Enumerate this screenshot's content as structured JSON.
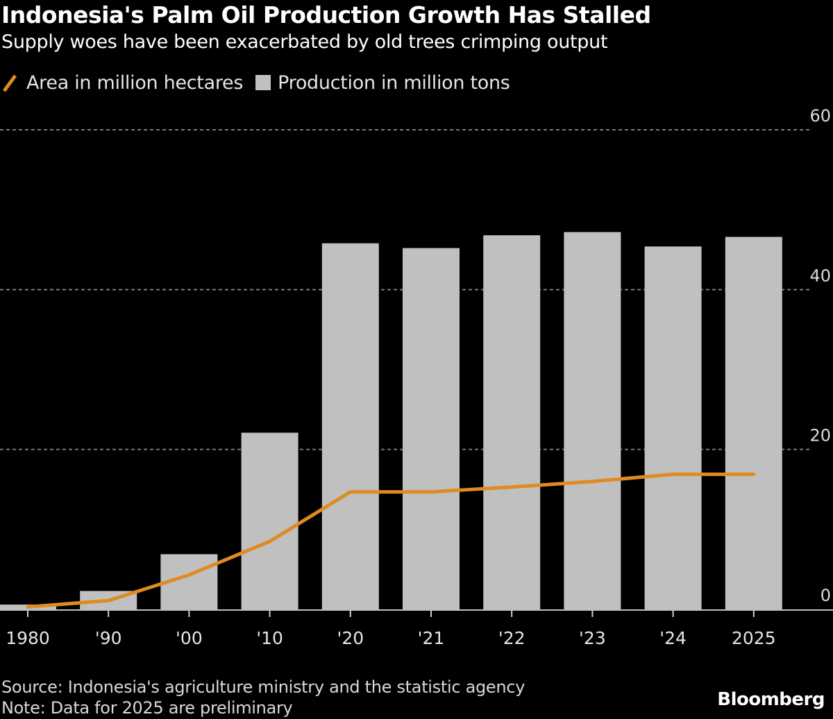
{
  "header": {
    "title": "Indonesia's Palm Oil Production Growth Has Stalled",
    "subtitle": "Supply woes have been exacerbated by old trees crimping output"
  },
  "legend": {
    "line_label": "Area in million hectares",
    "bar_label": "Production in million tons"
  },
  "footer": {
    "source": "Source: Indonesia's agriculture ministry and the statistic agency",
    "note": "Note: Data for 2025 are preliminary",
    "brand": "Bloomberg"
  },
  "colors": {
    "background": "#000000",
    "bar": "#c0c0c0",
    "line": "#e08a22",
    "grid": "#7a7a7a"
  },
  "chart_data": {
    "type": "bar",
    "title": "Indonesia's Palm Oil Production Growth Has Stalled",
    "subtitle": "Supply woes have been exacerbated by old trees crimping output",
    "xlabel": "",
    "ylabel": "",
    "categories": [
      "1980",
      "'90",
      "'00",
      "'10",
      "'20",
      "'21",
      "'22",
      "'23",
      "'24",
      "2025"
    ],
    "ylim": [
      0,
      60
    ],
    "yticks": [
      0,
      20,
      40,
      60
    ],
    "grid": true,
    "y_axis_side": "right",
    "legend_position": "top-left",
    "series": [
      {
        "name": "Production in million tons",
        "type": "bar",
        "values": [
          0.6,
          2.3,
          6.9,
          22.1,
          45.8,
          45.2,
          46.8,
          47.2,
          45.4,
          46.6
        ]
      },
      {
        "name": "Area in million hectares",
        "type": "line",
        "values": [
          0.3,
          1.1,
          4.3,
          8.5,
          14.7,
          14.7,
          15.3,
          16.0,
          16.9,
          16.9
        ]
      }
    ]
  }
}
